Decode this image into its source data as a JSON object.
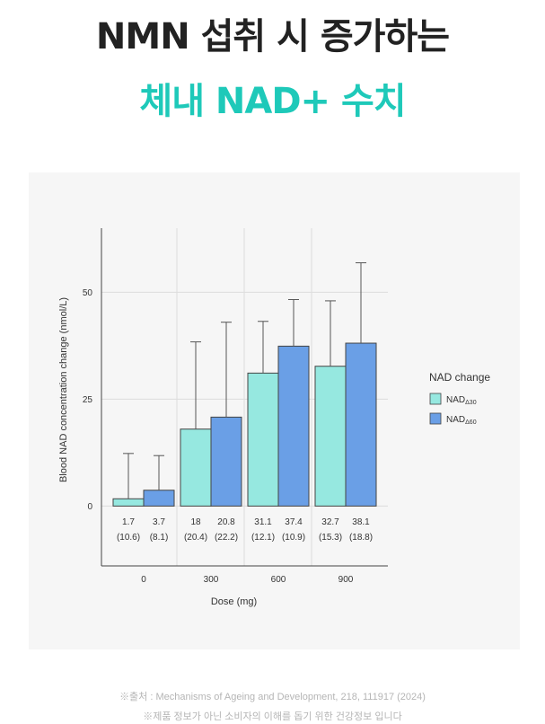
{
  "header": {
    "line1": "NMN 섭취 시 증가하는",
    "line2": "체내 NAD+ 수치"
  },
  "colors": {
    "accent": "#1ec9b9",
    "nad30": "#96e8e0",
    "nad60": "#6a9fe6",
    "background_panel": "#f6f6f6"
  },
  "chart_data": {
    "type": "bar",
    "xlabel": "Dose (mg)",
    "ylabel": "Blood NAD concentration change (nmol/L)",
    "categories": [
      "0",
      "300",
      "600",
      "900"
    ],
    "ylim": [
      -14,
      65
    ],
    "yticks": [
      0,
      25,
      50
    ],
    "legend_title": "NAD change",
    "legend_position": "right",
    "grid": true,
    "series": [
      {
        "name": "NAD",
        "subscript": "Δ30",
        "color": "#96e8e0",
        "values": [
          1.7,
          18,
          31.1,
          32.7
        ],
        "errors": [
          10.6,
          20.4,
          12.1,
          15.3
        ],
        "value_labels": [
          "1.7",
          "18",
          "31.1",
          "32.7"
        ],
        "error_labels": [
          "(10.6)",
          "(20.4)",
          "(12.1)",
          "(15.3)"
        ]
      },
      {
        "name": "NAD",
        "subscript": "Δ60",
        "color": "#6a9fe6",
        "values": [
          3.7,
          20.8,
          37.4,
          38.1
        ],
        "errors": [
          8.1,
          22.2,
          10.9,
          18.8
        ],
        "value_labels": [
          "3.7",
          "20.8",
          "37.4",
          "38.1"
        ],
        "error_labels": [
          "(8.1)",
          "(22.2)",
          "(10.9)",
          "(18.8)"
        ]
      }
    ]
  },
  "footer": {
    "source": "※출처 : Mechanisms of Ageing and Development, 218, 111917 (2024)",
    "disclaimer": "※제품 정보가 아닌 소비자의 이해를 돕기 위한 건강정보 입니다"
  }
}
